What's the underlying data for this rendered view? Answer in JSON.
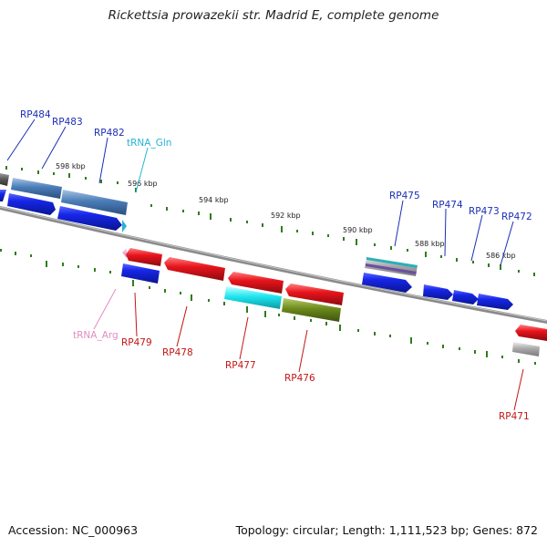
{
  "title": "Rickettsia prowazekii str. Madrid E, complete genome",
  "footer": {
    "accession": "Accession: NC_000963",
    "summary": "Topology: circular; Length: 1,111,523 bp; Genes: 872"
  },
  "colors": {
    "background": "#ffffff",
    "backbone": "#8a8a8a",
    "tick": "#2f7d1a",
    "forward_label": "#1a2fb5",
    "reverse_label": "#c41616",
    "trna_fwd_label": "#27b4d6",
    "trna_rev_label": "#e38cc0",
    "blue": "#1626e8",
    "steel": "#4a7cb8",
    "red": "#e8141c",
    "cyan": "#1ee6f0",
    "olive": "#6b8a1a",
    "gray": "#aaaaaa",
    "dark_gray": "#555555",
    "purple": "#6a4fa0",
    "teal": "#2ab0b8",
    "pink": "#f0a0d0"
  },
  "kbp_labels": [
    "598 kbp",
    "596 kbp",
    "594 kbp",
    "592 kbp",
    "590 kbp",
    "588 kbp",
    "586 kbp"
  ],
  "forward_labels": [
    "RP484",
    "RP483",
    "RP482",
    "tRNA_Gln",
    "RP475",
    "RP474",
    "RP473",
    "RP472"
  ],
  "reverse_labels": [
    "tRNA_Arg",
    "RP479",
    "RP478",
    "RP477",
    "RP476",
    "RP471"
  ]
}
